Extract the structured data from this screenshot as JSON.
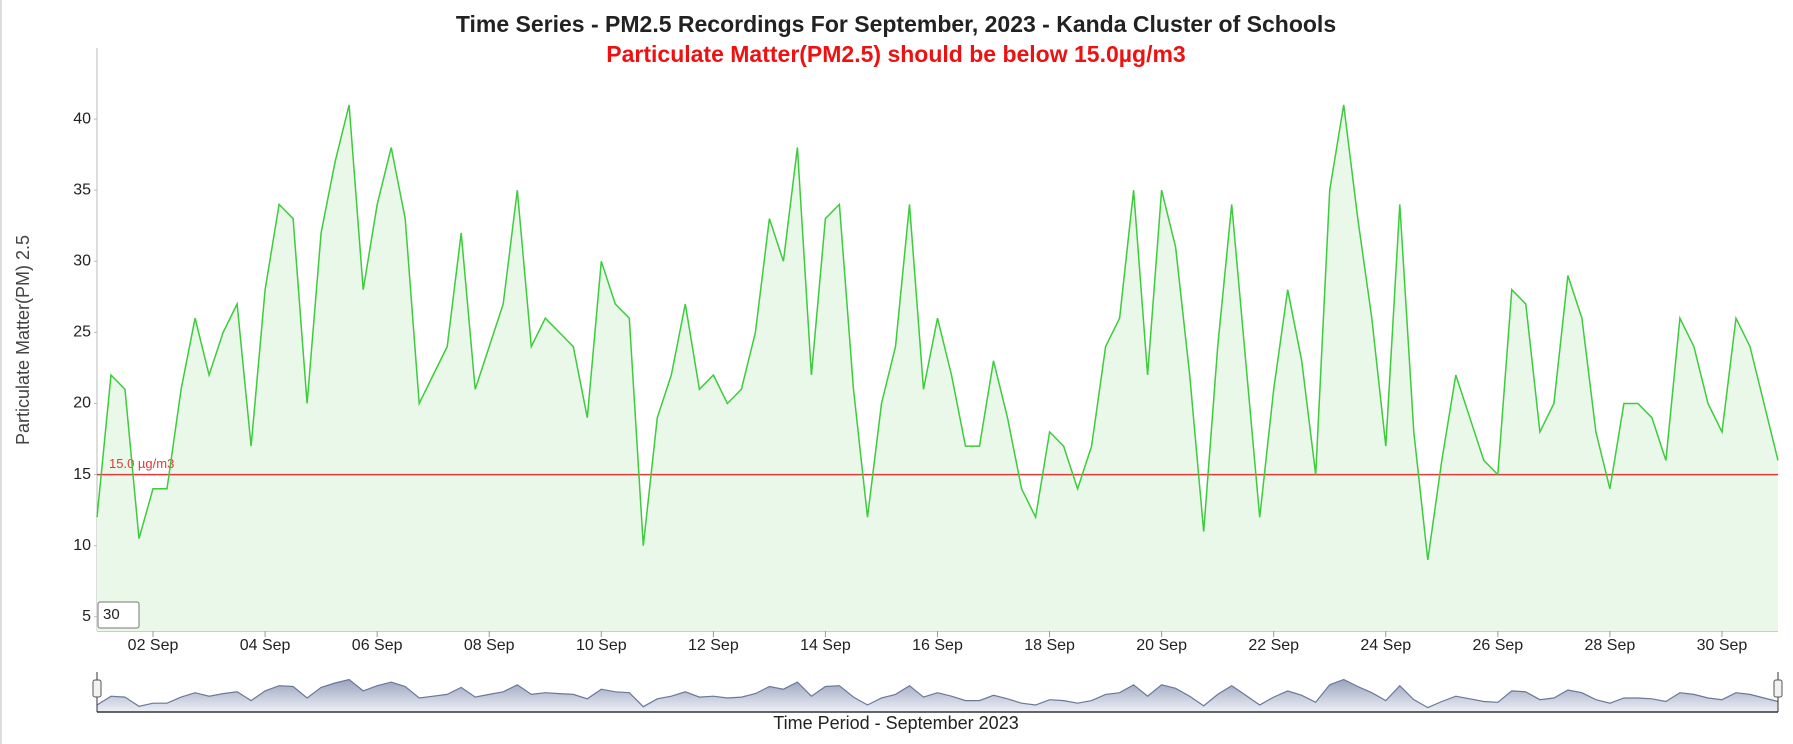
{
  "chart_data": {
    "type": "line",
    "title": "Time Series - PM2.5 Recordings For September, 2023 - Kanda Cluster of Schools",
    "subtitle": "Particulate Matter(PM2.5) should be below 15.0µg/m3",
    "y_label": "Particulate Matter(PM) 2.5",
    "x_label": "Time Period - September 2023",
    "color": "#3ccc3c",
    "fill": "#e9f8e9",
    "x": [
      1,
      1.25,
      1.5,
      1.75,
      2,
      2.25,
      2.5,
      2.75,
      3,
      3.25,
      3.5,
      3.75,
      4,
      4.25,
      4.5,
      4.75,
      5,
      5.25,
      5.5,
      5.75,
      6,
      6.25,
      6.5,
      6.75,
      7,
      7.25,
      7.5,
      7.75,
      8,
      8.25,
      8.5,
      8.75,
      9,
      9.25,
      9.5,
      9.75,
      10,
      10.25,
      10.5,
      10.75,
      11,
      11.25,
      11.5,
      11.75,
      12,
      12.25,
      12.5,
      12.75,
      13,
      13.25,
      13.5,
      13.75,
      14,
      14.25,
      14.5,
      14.75,
      15,
      15.25,
      15.5,
      15.75,
      16,
      16.25,
      16.5,
      16.75,
      17,
      17.25,
      17.5,
      17.75,
      18,
      18.25,
      18.5,
      18.75,
      19,
      19.25,
      19.5,
      19.75,
      20,
      20.25,
      20.5,
      20.75,
      21,
      21.25,
      21.5,
      21.75,
      22,
      22.25,
      22.5,
      22.75,
      23,
      23.25,
      23.5,
      23.75,
      24,
      24.25,
      24.5,
      24.75,
      25,
      25.25,
      25.5,
      25.75,
      26,
      26.25,
      26.5,
      26.75,
      27,
      27.25,
      27.5,
      27.75,
      28,
      28.25,
      28.5,
      28.75,
      29,
      29.25,
      29.5,
      29.75,
      30,
      30.25,
      30.5,
      30.75,
      31
    ],
    "values": [
      12,
      22,
      21,
      10.5,
      14,
      14,
      21,
      26,
      22,
      25,
      27,
      17,
      28,
      34,
      33,
      20,
      32,
      37,
      41,
      28,
      34,
      38,
      33,
      20,
      22,
      24,
      32,
      21,
      24,
      27,
      35,
      24,
      26,
      25,
      24,
      19,
      30,
      27,
      26,
      10,
      19,
      22,
      27,
      21,
      22,
      20,
      21,
      25,
      33,
      30,
      38,
      22,
      33,
      34,
      21,
      12,
      20,
      24,
      34,
      21,
      26,
      22,
      17,
      17,
      23,
      19,
      14,
      12,
      18,
      17,
      14,
      17,
      24,
      26,
      35,
      22,
      35,
      31,
      22,
      11,
      24,
      34,
      23,
      12,
      21,
      28,
      23,
      15,
      35,
      41,
      33,
      26,
      17,
      34,
      18,
      9,
      16,
      22,
      19,
      16,
      15,
      28,
      27,
      18,
      20,
      29,
      26,
      18,
      14,
      20,
      20,
      19,
      16,
      26,
      24,
      20,
      18,
      26,
      24,
      20,
      16
    ],
    "xlim": [
      1,
      31
    ],
    "xticks": [
      {
        "value": 2,
        "label": "02 Sep"
      },
      {
        "value": 4,
        "label": "04 Sep"
      },
      {
        "value": 6,
        "label": "06 Sep"
      },
      {
        "value": 8,
        "label": "08 Sep"
      },
      {
        "value": 10,
        "label": "10 Sep"
      },
      {
        "value": 12,
        "label": "12 Sep"
      },
      {
        "value": 14,
        "label": "14 Sep"
      },
      {
        "value": 16,
        "label": "16 Sep"
      },
      {
        "value": 18,
        "label": "18 Sep"
      },
      {
        "value": 20,
        "label": "20 Sep"
      },
      {
        "value": 22,
        "label": "22 Sep"
      },
      {
        "value": 24,
        "label": "24 Sep"
      },
      {
        "value": 26,
        "label": "26 Sep"
      },
      {
        "value": 28,
        "label": "28 Sep"
      },
      {
        "value": 30,
        "label": "30 Sep"
      }
    ],
    "ylim": [
      4,
      45
    ],
    "yticks": [
      5,
      10,
      15,
      20,
      25,
      30,
      35,
      40
    ],
    "threshold": {
      "value": 15,
      "label": "15.0 µg/m3",
      "color": "#e03a3a"
    },
    "input_value": "30",
    "navigator": true
  }
}
